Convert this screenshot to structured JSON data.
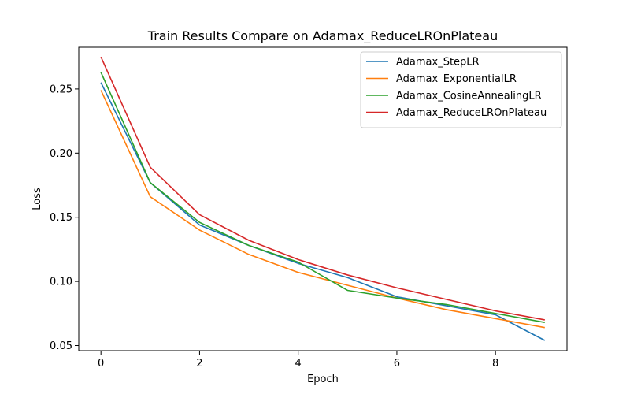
{
  "chart_data": {
    "type": "line",
    "title": "Train Results Compare on Adamax_ReduceLROnPlateau",
    "xlabel": "Epoch",
    "ylabel": "Loss",
    "xlim": [
      -0.45,
      9.45
    ],
    "ylim": [
      0.046,
      0.2825
    ],
    "xticks": [
      0,
      2,
      4,
      6,
      8
    ],
    "yticks": [
      0.05,
      0.1,
      0.15,
      0.2,
      0.25
    ],
    "ytick_labels": [
      "0.05",
      "0.10",
      "0.15",
      "0.20",
      "0.25"
    ],
    "legend_position": "upper-right",
    "grid": false,
    "x": [
      0,
      1,
      2,
      3,
      4,
      5,
      6,
      7,
      8,
      9
    ],
    "series": [
      {
        "name": "Adamax_StepLR",
        "color": "#1f77b4",
        "values": [
          0.255,
          0.177,
          0.144,
          0.128,
          0.114,
          0.103,
          0.088,
          0.081,
          0.074,
          0.054
        ]
      },
      {
        "name": "Adamax_ExponentialLR",
        "color": "#ff7f0e",
        "values": [
          0.249,
          0.166,
          0.14,
          0.121,
          0.107,
          0.097,
          0.087,
          0.078,
          0.071,
          0.064
        ]
      },
      {
        "name": "Adamax_CosineAnnealingLR",
        "color": "#2ca02c",
        "values": [
          0.263,
          0.177,
          0.146,
          0.128,
          0.115,
          0.093,
          0.087,
          0.082,
          0.075,
          0.068
        ]
      },
      {
        "name": "Adamax_ReduceLROnPlateau",
        "color": "#d62728",
        "values": [
          0.275,
          0.189,
          0.152,
          0.132,
          0.117,
          0.105,
          0.095,
          0.086,
          0.077,
          0.07
        ]
      }
    ]
  }
}
